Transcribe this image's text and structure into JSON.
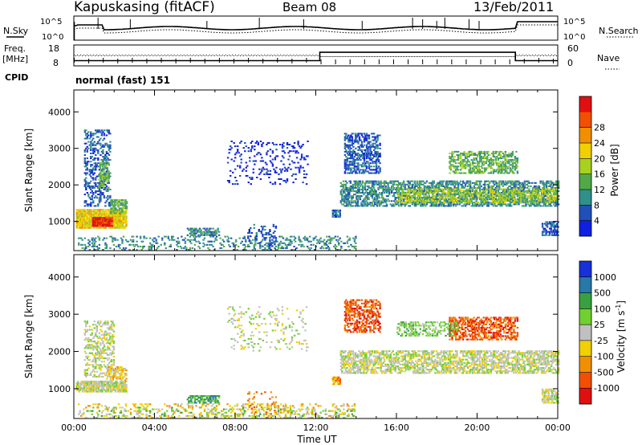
{
  "header": {
    "station": "Kapuskasing (fitACF)",
    "beam": "Beam 08",
    "date": "13/Feb/2011"
  },
  "noise_panel": {
    "left_label": "N.Sky",
    "right_label": "N.Search",
    "left_ticks": [
      "10^5",
      "10^0"
    ],
    "right_ticks": [
      "10^5",
      "10^0"
    ]
  },
  "freq_panel": {
    "left_label": "Freq.",
    "left_unit": "[MHz]",
    "right_label": "Nave",
    "left_ticks": [
      "18",
      "8"
    ],
    "right_ticks": [
      "60",
      "0"
    ],
    "freq_steps": [
      {
        "from_hour": 0,
        "to_hour": 12.2,
        "freq_mhz": 10.5
      },
      {
        "from_hour": 12.2,
        "to_hour": 21.9,
        "freq_mhz": 14.5
      },
      {
        "from_hour": 21.9,
        "to_hour": 24,
        "freq_mhz": 10.5
      }
    ]
  },
  "cpid": {
    "label": "CPID",
    "value": "normal (fast) 151"
  },
  "chart_data": [
    {
      "type": "heatmap",
      "name": "power",
      "xlabel": "",
      "ylabel": "Slant Range [km]",
      "xlim": [
        0,
        24
      ],
      "ylim": [
        200,
        4600
      ],
      "y_ticks": [
        "1000",
        "2000",
        "3000",
        "4000"
      ],
      "colorbar": {
        "label": "Power [dB]",
        "ticks": [
          "4",
          "8",
          "12",
          "16",
          "20",
          "24",
          "28"
        ],
        "colors": [
          "#1020e0",
          "#2050b8",
          "#30908a",
          "#52a848",
          "#a8d020",
          "#f0d000",
          "#f09000",
          "#f05000",
          "#e01010"
        ]
      },
      "regions": [
        {
          "t0": 0.1,
          "t1": 2.6,
          "r0": 800,
          "r1": 1300,
          "level": 5,
          "density": 0.9
        },
        {
          "t0": 0.9,
          "t1": 1.9,
          "r0": 850,
          "r1": 1100,
          "level": 8,
          "density": 0.9
        },
        {
          "t0": 0.5,
          "t1": 1.8,
          "r0": 1400,
          "r1": 3500,
          "level": 1,
          "density": 0.35
        },
        {
          "t0": 1.2,
          "t1": 1.7,
          "r0": 1900,
          "r1": 2700,
          "level": 3,
          "density": 0.6
        },
        {
          "t0": 1.8,
          "t1": 2.6,
          "r0": 1200,
          "r1": 1600,
          "level": 3,
          "density": 0.6
        },
        {
          "t0": 5.6,
          "t1": 7.2,
          "r0": 600,
          "r1": 800,
          "level": 2,
          "density": 0.6
        },
        {
          "t0": 7.6,
          "t1": 11.6,
          "r0": 2000,
          "r1": 3200,
          "level": 0,
          "density": 0.12
        },
        {
          "t0": 13.4,
          "t1": 15.2,
          "r0": 2300,
          "r1": 3400,
          "level": 1,
          "density": 0.5
        },
        {
          "t0": 13.2,
          "t1": 24,
          "r0": 1400,
          "r1": 2100,
          "level": 2,
          "density": 0.55
        },
        {
          "t0": 16.0,
          "t1": 24,
          "r0": 1500,
          "r1": 1900,
          "level": 4,
          "density": 0.45
        },
        {
          "t0": 18.6,
          "t1": 22.0,
          "r0": 2300,
          "r1": 2900,
          "level": 3,
          "density": 0.55
        },
        {
          "t0": 12.8,
          "t1": 13.2,
          "r0": 1100,
          "r1": 1300,
          "level": 1,
          "density": 0.8
        },
        {
          "t0": 23.2,
          "t1": 24,
          "r0": 600,
          "r1": 1000,
          "level": 1,
          "density": 0.6
        },
        {
          "t0": 0.2,
          "t1": 14.0,
          "r0": 200,
          "r1": 600,
          "level": 2,
          "density": 0.22
        },
        {
          "t0": 8.6,
          "t1": 10.0,
          "r0": 300,
          "r1": 900,
          "level": 1,
          "density": 0.2
        }
      ]
    },
    {
      "type": "heatmap",
      "name": "velocity",
      "xlabel": "Time UT",
      "ylabel": "Slant Range [km]",
      "xlim": [
        0,
        24
      ],
      "ylim": [
        200,
        4600
      ],
      "x_ticks": [
        "00:00",
        "04:00",
        "08:00",
        "12:00",
        "16:00",
        "20:00",
        "00:00"
      ],
      "y_ticks": [
        "1000",
        "2000",
        "3000",
        "4000"
      ],
      "colorbar": {
        "label": "Velocity [m s^-1]",
        "ticks": [
          "1000",
          "500",
          "100",
          "25",
          "-25",
          "-100",
          "-500",
          "-1000"
        ],
        "colors": [
          "#1830d8",
          "#2878a8",
          "#38a040",
          "#70d030",
          "#c0c0c0",
          "#f0d000",
          "#f09000",
          "#f05000",
          "#e01010"
        ]
      },
      "regions": [
        {
          "t0": 0.1,
          "t1": 2.6,
          "r0": 900,
          "r1": 1200,
          "level": 4,
          "density": 0.8
        },
        {
          "t0": 0.5,
          "t1": 2.0,
          "r0": 1300,
          "r1": 2800,
          "level": 4,
          "density": 0.4
        },
        {
          "t0": 1.6,
          "t1": 2.6,
          "r0": 1200,
          "r1": 1600,
          "level": 5,
          "density": 0.45
        },
        {
          "t0": 5.6,
          "t1": 7.2,
          "r0": 600,
          "r1": 800,
          "level": 2,
          "density": 0.6
        },
        {
          "t0": 7.6,
          "t1": 11.6,
          "r0": 2000,
          "r1": 3200,
          "level": 4,
          "density": 0.1
        },
        {
          "t0": 13.4,
          "t1": 15.2,
          "r0": 2500,
          "r1": 3400,
          "level": 7,
          "density": 0.5
        },
        {
          "t0": 13.2,
          "t1": 24,
          "r0": 1400,
          "r1": 2000,
          "level": 4,
          "density": 0.55
        },
        {
          "t0": 18.6,
          "t1": 22.0,
          "r0": 2300,
          "r1": 2900,
          "level": 7,
          "density": 0.5
        },
        {
          "t0": 16.0,
          "t1": 19.0,
          "r0": 2400,
          "r1": 2800,
          "level": 3,
          "density": 0.35
        },
        {
          "t0": 12.8,
          "t1": 13.2,
          "r0": 1100,
          "r1": 1300,
          "level": 6,
          "density": 0.8
        },
        {
          "t0": 23.2,
          "t1": 24,
          "r0": 600,
          "r1": 1000,
          "level": 4,
          "density": 0.6
        },
        {
          "t0": 0.2,
          "t1": 14.0,
          "r0": 200,
          "r1": 600,
          "level": 5,
          "density": 0.2
        },
        {
          "t0": 0.2,
          "t1": 14.0,
          "r0": 200,
          "r1": 500,
          "level": 3,
          "density": 0.12
        },
        {
          "t0": 8.6,
          "t1": 10.0,
          "r0": 300,
          "r1": 900,
          "level": 6,
          "density": 0.15
        }
      ]
    }
  ]
}
